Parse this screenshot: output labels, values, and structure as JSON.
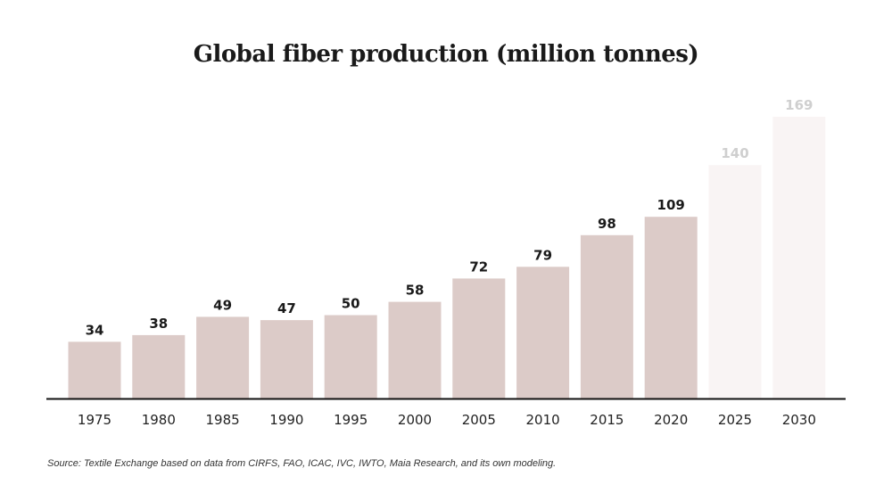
{
  "chart_data": {
    "type": "bar",
    "title": "Global fiber production (million tonnes)",
    "xlabel": "",
    "ylabel": "",
    "categories": [
      "1975",
      "1980",
      "1985",
      "1990",
      "1995",
      "2000",
      "2005",
      "2010",
      "2015",
      "2020",
      "2025",
      "2030"
    ],
    "values": [
      34,
      38,
      49,
      47,
      50,
      58,
      72,
      79,
      98,
      109,
      140,
      169
    ],
    "projected": [
      false,
      false,
      false,
      false,
      false,
      false,
      false,
      false,
      false,
      false,
      true,
      true
    ],
    "ylim": [
      0,
      169
    ],
    "grid": false,
    "legend": "none",
    "colors": {
      "bar": "#dccbc8",
      "bar_projected": "#f9f4f4",
      "label": "#1a1a1a",
      "label_projected": "#cfcfcf",
      "axis": "#111111"
    }
  },
  "source_note": "Source: Textile Exchange based on data from CIRFS, FAO, ICAC, IVC, IWTO, Maia Research, and its own modeling."
}
